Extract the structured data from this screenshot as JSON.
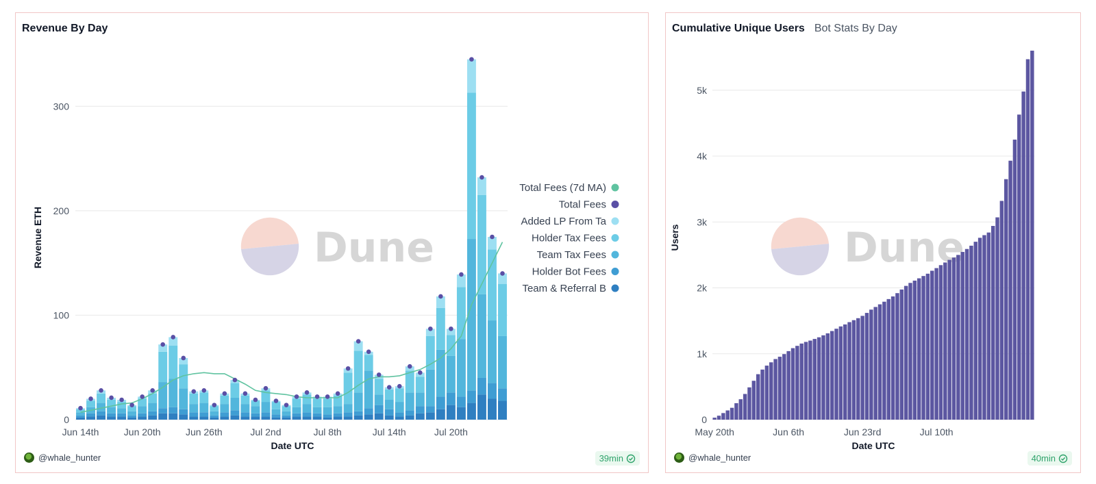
{
  "left_panel": {
    "title": "Revenue By Day",
    "user": "@whale_hunter",
    "refresh": "39min"
  },
  "right_panel": {
    "title": "Cumulative Unique Users",
    "tab2": "Bot Stats By Day",
    "user": "@whale_hunter",
    "refresh": "40min"
  },
  "watermark": "Dune",
  "colors": {
    "ma": "#5fc3a0",
    "total_dot": "#5a4fa5",
    "added_lp": "#9ddff2",
    "holder_tax": "#6ccce6",
    "team_tax": "#52b6dc",
    "holder_bot": "#3f9dd3",
    "team_ref": "#2f7fc1",
    "users_bar": "#5c57a1",
    "grid": "#e8e8e8"
  },
  "chart_data": [
    {
      "type": "bar",
      "title": "Revenue By Day",
      "xlabel": "Date UTC",
      "ylabel": "Revenue ETH",
      "ylim": [
        0,
        350
      ],
      "yticks": [
        0,
        100,
        200,
        300
      ],
      "ytick_labels": [
        "0",
        "100",
        "200",
        "300"
      ],
      "xtick_labels": [
        "Jun 14th",
        "Jun 20th",
        "Jun 26th",
        "Jul 2nd",
        "Jul 8th",
        "Jul 14th",
        "Jul 20th"
      ],
      "xtick_index": [
        0,
        6,
        12,
        18,
        24,
        30,
        36
      ],
      "legend_position": "right",
      "legend": [
        "Total Fees (7d MA)",
        "Total Fees",
        "Added LP From Ta",
        "Holder Tax Fees",
        "Team Tax Fees",
        "Holder Bot Fees",
        "Team & Referral B"
      ],
      "series": [
        {
          "name": "Team & Referral Bot Fees",
          "values": [
            2,
            3,
            4,
            3,
            3,
            2,
            3,
            4,
            6,
            6,
            5,
            3,
            3,
            2,
            3,
            4,
            3,
            3,
            3,
            2,
            2,
            3,
            3,
            3,
            2,
            3,
            3,
            4,
            5,
            6,
            4,
            3,
            4,
            6,
            7,
            10,
            14,
            12,
            16,
            24,
            20,
            18
          ]
        },
        {
          "name": "Holder Bot Fees",
          "values": [
            2,
            3,
            4,
            3,
            3,
            2,
            3,
            4,
            5,
            6,
            5,
            4,
            4,
            2,
            4,
            5,
            4,
            3,
            4,
            3,
            2,
            3,
            4,
            3,
            3,
            3,
            4,
            4,
            6,
            8,
            6,
            4,
            5,
            7,
            6,
            12,
            12,
            10,
            12,
            16,
            15,
            12
          ]
        },
        {
          "name": "Team Tax Fees",
          "values": [
            3,
            6,
            8,
            6,
            5,
            4,
            7,
            8,
            25,
            27,
            20,
            8,
            9,
            4,
            8,
            12,
            8,
            7,
            10,
            5,
            4,
            6,
            8,
            6,
            7,
            7,
            8,
            18,
            36,
            10,
            9,
            10,
            17,
            13,
            35,
            45,
            35,
            55,
            145,
            80,
            60,
            50
          ]
        },
        {
          "name": "Holder Tax Fees",
          "values": [
            3,
            6,
            9,
            7,
            6,
            5,
            7,
            9,
            29,
            32,
            23,
            10,
            10,
            5,
            8,
            14,
            8,
            5,
            11,
            7,
            5,
            8,
            9,
            8,
            8,
            10,
            30,
            40,
            15,
            15,
            10,
            13,
            21,
            15,
            32,
            40,
            20,
            50,
            140,
            95,
            68,
            50
          ]
        },
        {
          "name": "Added LP From Tax",
          "values": [
            1,
            2,
            3,
            2,
            2,
            1,
            2,
            3,
            7,
            8,
            6,
            2,
            2,
            1,
            2,
            3,
            2,
            1,
            2,
            1,
            1,
            2,
            2,
            2,
            2,
            2,
            4,
            9,
            3,
            4,
            2,
            2,
            4,
            4,
            7,
            11,
            6,
            12,
            32,
            17,
            12,
            10
          ]
        }
      ],
      "total_fees": [
        11,
        20,
        28,
        21,
        19,
        14,
        22,
        28,
        72,
        79,
        59,
        27,
        28,
        14,
        25,
        38,
        25,
        19,
        30,
        18,
        14,
        22,
        26,
        22,
        22,
        25,
        49,
        75,
        65,
        43,
        31,
        32,
        51,
        45,
        87,
        118,
        87,
        139,
        345,
        232,
        175,
        140
      ],
      "total_fees_7d_ma": [
        7,
        9,
        11,
        13,
        15,
        16,
        20,
        25,
        31,
        38,
        42,
        44,
        45,
        44,
        44,
        39,
        34,
        28,
        26,
        25,
        24,
        22,
        21,
        21,
        21,
        21,
        26,
        33,
        39,
        41,
        41,
        42,
        45,
        48,
        53,
        59,
        68,
        80,
        110,
        130,
        150,
        170
      ]
    },
    {
      "type": "bar",
      "title": "Cumulative Unique Users",
      "xlabel": "Date UTC",
      "ylabel": "Users",
      "ylim": [
        0,
        5600
      ],
      "yticks": [
        0,
        1000,
        2000,
        3000,
        4000,
        5000
      ],
      "ytick_labels": [
        "0",
        "1k",
        "2k",
        "3k",
        "4k",
        "5k"
      ],
      "xtick_labels": [
        "May 20th",
        "Jun 6th",
        "Jun 23rd",
        "Jul 10th"
      ],
      "xtick_index": [
        0,
        17,
        34,
        51
      ],
      "values": [
        30,
        60,
        100,
        140,
        180,
        250,
        310,
        390,
        490,
        590,
        690,
        760,
        820,
        870,
        920,
        955,
        995,
        1040,
        1085,
        1120,
        1155,
        1180,
        1200,
        1225,
        1250,
        1280,
        1310,
        1345,
        1380,
        1415,
        1445,
        1480,
        1510,
        1540,
        1575,
        1620,
        1670,
        1710,
        1750,
        1790,
        1830,
        1870,
        1920,
        1975,
        2030,
        2075,
        2110,
        2145,
        2180,
        2215,
        2260,
        2300,
        2345,
        2385,
        2425,
        2460,
        2500,
        2545,
        2590,
        2640,
        2700,
        2760,
        2800,
        2840,
        2940,
        3070,
        3320,
        3650,
        3930,
        4250,
        4630,
        4980,
        5470,
        5600
      ]
    }
  ]
}
